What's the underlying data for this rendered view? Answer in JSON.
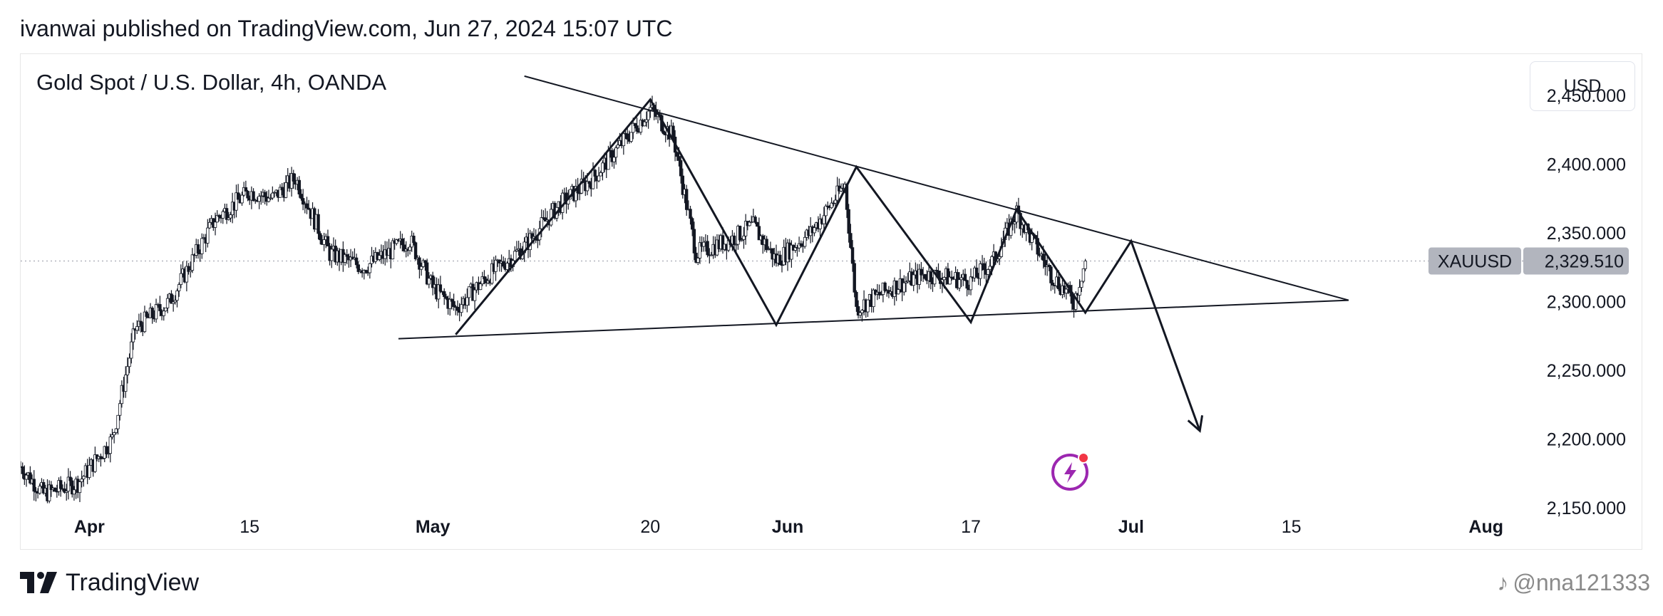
{
  "publisher_line": "ivanwai published on TradingView.com, Jun 27, 2024 15:07 UTC",
  "symbol_title": "Gold Spot / U.S. Dollar, 4h, OANDA",
  "currency_button": "USD",
  "footer_brand": "TradingView",
  "watermark": "@nna121333",
  "colors": {
    "candle": "#131722",
    "price_line": "#b2b5be",
    "label_bg": "#b2b5be",
    "badge": "#9c27b0",
    "badge_dot": "#f23645"
  },
  "chart_data": {
    "type": "candlestick",
    "title": "Gold Spot / U.S. Dollar, 4h, OANDA",
    "currency": "USD",
    "ylim": [
      2120,
      2480
    ],
    "y_ticks": [
      {
        "value": 2450,
        "label": "2,450.000"
      },
      {
        "value": 2400,
        "label": "2,400.000"
      },
      {
        "value": 2350,
        "label": "2,350.000"
      },
      {
        "value": 2300,
        "label": "2,300.000"
      },
      {
        "value": 2250,
        "label": "2,250.000"
      },
      {
        "value": 2200,
        "label": "2,200.000"
      },
      {
        "value": 2150,
        "label": "2,150.000"
      }
    ],
    "x_range": [
      "2024-03-26",
      "2024-08-06"
    ],
    "x_ticks": [
      {
        "date": "2024-04-01",
        "label": "Apr",
        "bold": true
      },
      {
        "date": "2024-04-15",
        "label": "15",
        "bold": false
      },
      {
        "date": "2024-05-01",
        "label": "May",
        "bold": true
      },
      {
        "date": "2024-05-20",
        "label": "20",
        "bold": false
      },
      {
        "date": "2024-06-01",
        "label": "Jun",
        "bold": true
      },
      {
        "date": "2024-06-17",
        "label": "17",
        "bold": false
      },
      {
        "date": "2024-07-01",
        "label": "Jul",
        "bold": true
      },
      {
        "date": "2024-07-15",
        "label": "15",
        "bold": false
      },
      {
        "date": "2024-08-01",
        "label": "Aug",
        "bold": true
      }
    ],
    "last_price": {
      "symbol": "XAUUSD",
      "value": 2329.51,
      "label": "2,329.510"
    },
    "price_path": [
      {
        "date": "2024-03-26",
        "close": 2180
      },
      {
        "date": "2024-03-28",
        "close": 2160
      },
      {
        "date": "2024-03-31",
        "close": 2168
      },
      {
        "date": "2024-04-03",
        "close": 2200
      },
      {
        "date": "2024-04-05",
        "close": 2280
      },
      {
        "date": "2024-04-08",
        "close": 2300
      },
      {
        "date": "2024-04-10",
        "close": 2330
      },
      {
        "date": "2024-04-12",
        "close": 2360
      },
      {
        "date": "2024-04-15",
        "close": 2380
      },
      {
        "date": "2024-04-17",
        "close": 2375
      },
      {
        "date": "2024-04-19",
        "close": 2390
      },
      {
        "date": "2024-04-22",
        "close": 2335
      },
      {
        "date": "2024-04-25",
        "close": 2325
      },
      {
        "date": "2024-04-29",
        "close": 2345
      },
      {
        "date": "2024-05-01",
        "close": 2310
      },
      {
        "date": "2024-05-03",
        "close": 2295
      },
      {
        "date": "2024-05-06",
        "close": 2320
      },
      {
        "date": "2024-05-09",
        "close": 2340
      },
      {
        "date": "2024-05-12",
        "close": 2370
      },
      {
        "date": "2024-05-15",
        "close": 2390
      },
      {
        "date": "2024-05-18",
        "close": 2420
      },
      {
        "date": "2024-05-20",
        "close": 2440
      },
      {
        "date": "2024-05-22",
        "close": 2420
      },
      {
        "date": "2024-05-24",
        "close": 2335
      },
      {
        "date": "2024-05-27",
        "close": 2345
      },
      {
        "date": "2024-05-29",
        "close": 2355
      },
      {
        "date": "2024-05-31",
        "close": 2330
      },
      {
        "date": "2024-06-03",
        "close": 2350
      },
      {
        "date": "2024-06-06",
        "close": 2385
      },
      {
        "date": "2024-06-07",
        "close": 2295
      },
      {
        "date": "2024-06-10",
        "close": 2310
      },
      {
        "date": "2024-06-13",
        "close": 2320
      },
      {
        "date": "2024-06-17",
        "close": 2315
      },
      {
        "date": "2024-06-19",
        "close": 2330
      },
      {
        "date": "2024-06-21",
        "close": 2365
      },
      {
        "date": "2024-06-24",
        "close": 2320
      },
      {
        "date": "2024-06-26",
        "close": 2300
      },
      {
        "date": "2024-06-27",
        "close": 2329.51
      }
    ],
    "drawings": {
      "upper_trendline": [
        {
          "date": "2024-05-09",
          "value": 2464
        },
        {
          "date": "2024-07-20",
          "value": 2301
        }
      ],
      "lower_trendline": [
        {
          "date": "2024-04-28",
          "value": 2273
        },
        {
          "date": "2024-07-20",
          "value": 2301
        }
      ],
      "zigzag": [
        {
          "date": "2024-05-03",
          "value": 2276
        },
        {
          "date": "2024-05-20",
          "value": 2447
        },
        {
          "date": "2024-05-31",
          "value": 2283
        },
        {
          "date": "2024-06-07",
          "value": 2398
        },
        {
          "date": "2024-06-17",
          "value": 2285
        },
        {
          "date": "2024-06-21",
          "value": 2367
        },
        {
          "date": "2024-06-27",
          "value": 2292
        },
        {
          "date": "2024-07-01",
          "value": 2344
        },
        {
          "date": "2024-07-07",
          "value": 2206
        }
      ]
    }
  }
}
